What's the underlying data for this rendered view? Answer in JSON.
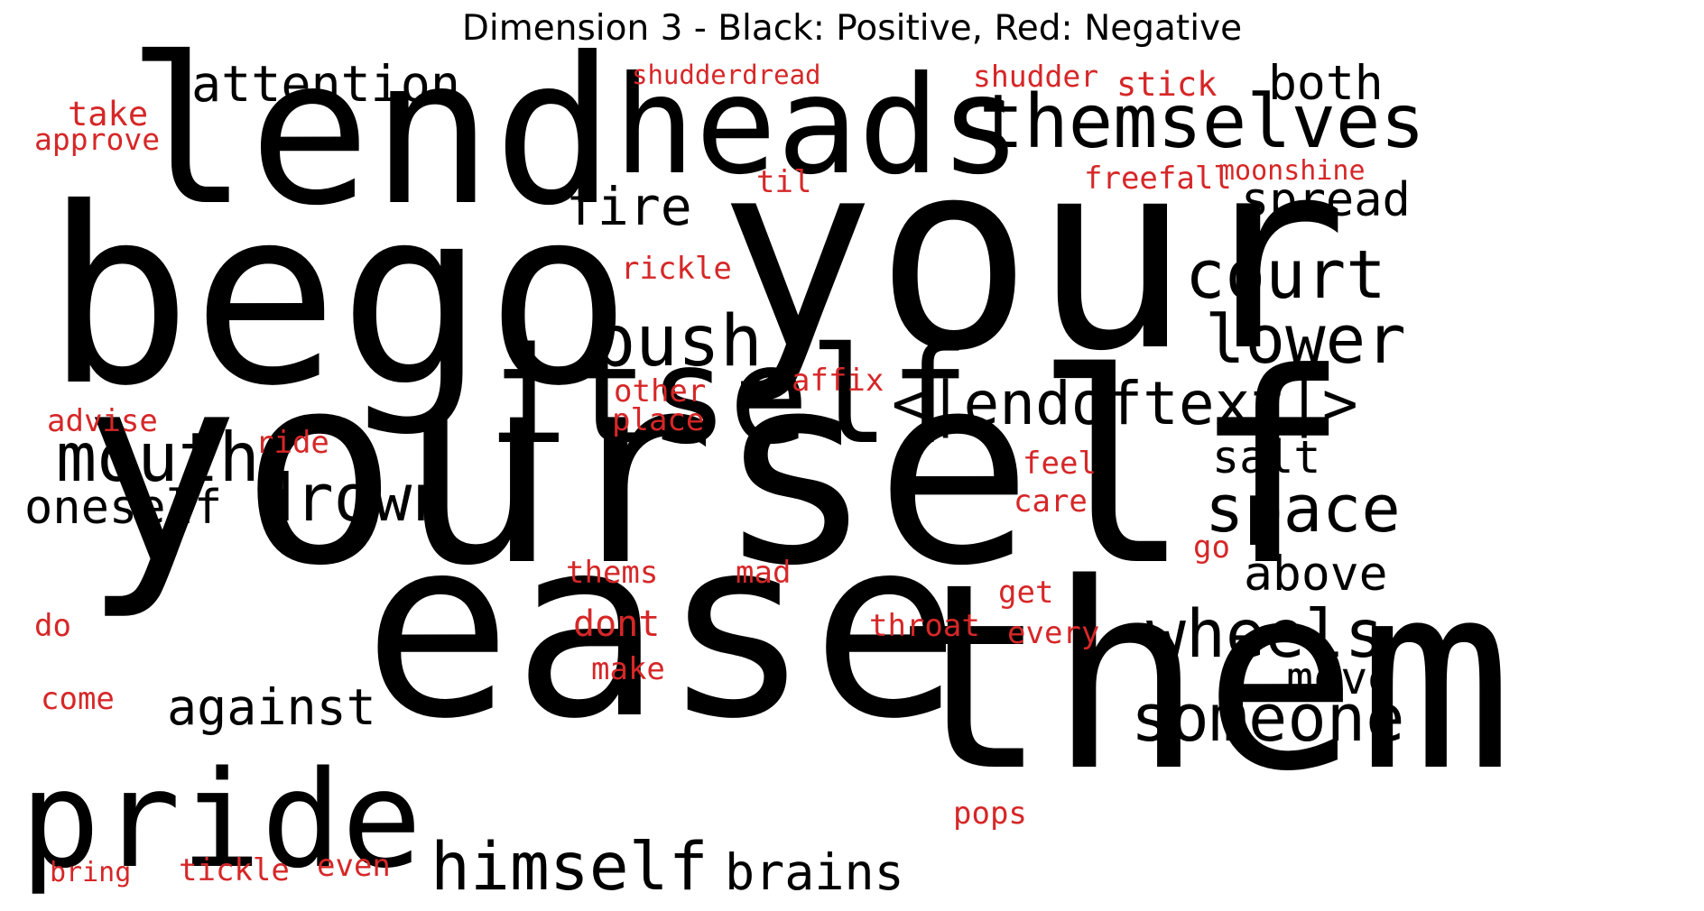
{
  "title": "Dimension 3 - Black: Positive, Red: Negative",
  "colors": {
    "positive": "#000000",
    "negative": "#d62728"
  },
  "words": [
    {
      "text": "your",
      "polarity": "positive"
    },
    {
      "text": "bego",
      "polarity": "positive"
    },
    {
      "text": "yourself",
      "polarity": "positive"
    },
    {
      "text": "ease",
      "polarity": "positive"
    },
    {
      "text": "them",
      "polarity": "positive"
    },
    {
      "text": "lend",
      "polarity": "positive"
    },
    {
      "text": "heads",
      "polarity": "positive"
    },
    {
      "text": "itself",
      "polarity": "positive"
    },
    {
      "text": "pride",
      "polarity": "positive"
    },
    {
      "text": "themselves",
      "polarity": "positive"
    },
    {
      "text": "attention",
      "polarity": "positive"
    },
    {
      "text": "both",
      "polarity": "positive"
    },
    {
      "text": "fire",
      "polarity": "positive"
    },
    {
      "text": "spread",
      "polarity": "positive"
    },
    {
      "text": "court",
      "polarity": "positive"
    },
    {
      "text": "push",
      "polarity": "positive"
    },
    {
      "text": "lower",
      "polarity": "positive"
    },
    {
      "text": "<|endoftext|>",
      "polarity": "positive"
    },
    {
      "text": "mouth",
      "polarity": "positive"
    },
    {
      "text": "drown",
      "polarity": "positive"
    },
    {
      "text": "oneself",
      "polarity": "positive"
    },
    {
      "text": "salt",
      "polarity": "positive"
    },
    {
      "text": "space",
      "polarity": "positive"
    },
    {
      "text": "above",
      "polarity": "positive"
    },
    {
      "text": "wheels",
      "polarity": "positive"
    },
    {
      "text": "move",
      "polarity": "positive"
    },
    {
      "text": "someone",
      "polarity": "positive"
    },
    {
      "text": "against",
      "polarity": "positive"
    },
    {
      "text": "himself",
      "polarity": "positive"
    },
    {
      "text": "brains",
      "polarity": "positive"
    },
    {
      "text": "shudderdread",
      "polarity": "negative"
    },
    {
      "text": "shudder",
      "polarity": "negative"
    },
    {
      "text": "stick",
      "polarity": "negative"
    },
    {
      "text": "take",
      "polarity": "negative"
    },
    {
      "text": "approve",
      "polarity": "negative"
    },
    {
      "text": "freefall",
      "polarity": "negative"
    },
    {
      "text": "moonshine",
      "polarity": "negative"
    },
    {
      "text": "til",
      "polarity": "negative"
    },
    {
      "text": "rickle",
      "polarity": "negative"
    },
    {
      "text": "affix",
      "polarity": "negative"
    },
    {
      "text": "other",
      "polarity": "negative"
    },
    {
      "text": "place",
      "polarity": "negative"
    },
    {
      "text": "advise",
      "polarity": "negative"
    },
    {
      "text": "ride",
      "polarity": "negative"
    },
    {
      "text": "feel",
      "polarity": "negative"
    },
    {
      "text": "care",
      "polarity": "negative"
    },
    {
      "text": "go",
      "polarity": "negative"
    },
    {
      "text": "thems",
      "polarity": "negative"
    },
    {
      "text": "mad",
      "polarity": "negative"
    },
    {
      "text": "get",
      "polarity": "negative"
    },
    {
      "text": "do",
      "polarity": "negative"
    },
    {
      "text": "dont",
      "polarity": "negative"
    },
    {
      "text": "throat",
      "polarity": "negative"
    },
    {
      "text": "every",
      "polarity": "negative"
    },
    {
      "text": "make",
      "polarity": "negative"
    },
    {
      "text": "come",
      "polarity": "negative"
    },
    {
      "text": "pops",
      "polarity": "negative"
    },
    {
      "text": "bring",
      "polarity": "negative"
    },
    {
      "text": "tickle",
      "polarity": "negative"
    },
    {
      "text": "even",
      "polarity": "negative"
    }
  ]
}
